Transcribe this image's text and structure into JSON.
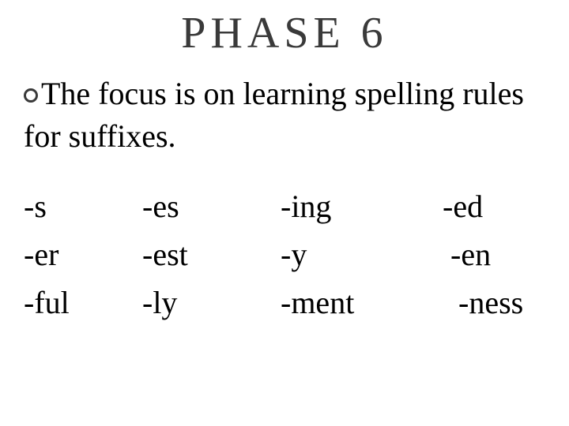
{
  "title": "PHASE 6",
  "title_fontsize": 56,
  "title_color": "#3a3a3a",
  "bullet_border_color": "#3a3a3a",
  "description": "The focus is on learning spelling rules for suffixes.",
  "desc_fontsize": 40,
  "desc_color": "#000000",
  "suffix_table": {
    "type": "table",
    "fontsize": 40,
    "text_color": "#000000",
    "columns": 4,
    "rows": [
      [
        "-s",
        "-es",
        "-ing",
        "-ed"
      ],
      [
        "-er",
        "-est",
        "-y",
        " -en"
      ],
      [
        "-ful",
        "-ly",
        "-ment",
        "  -ness"
      ]
    ]
  },
  "background_color": "#ffffff"
}
